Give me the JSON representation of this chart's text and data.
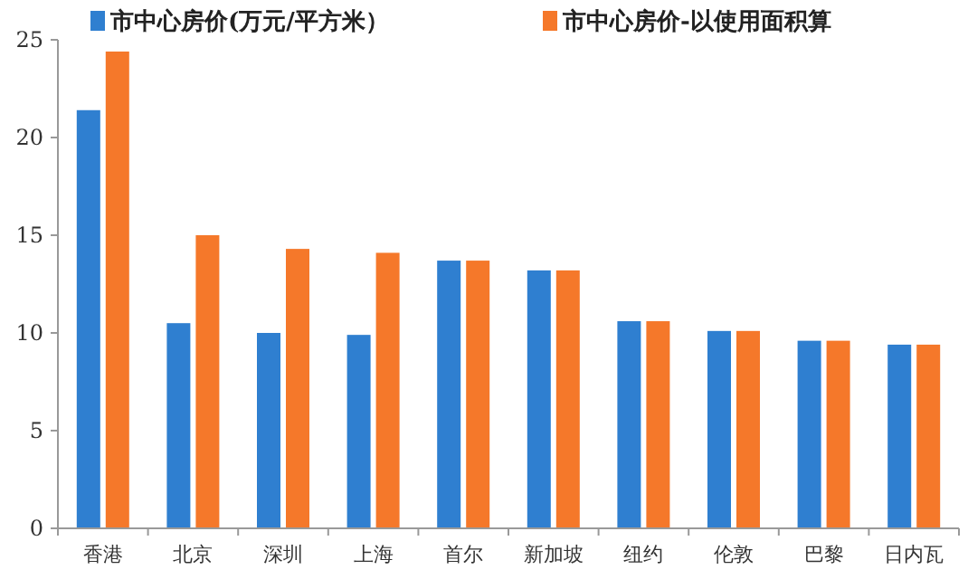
{
  "chart_data": {
    "type": "bar",
    "categories": [
      "香港",
      "北京",
      "深圳",
      "上海",
      "首尔",
      "新加坡",
      "纽约",
      "伦敦",
      "巴黎",
      "日内瓦"
    ],
    "series": [
      {
        "name": "市中心房价(万元/平方米）",
        "color": "#2f7fd0",
        "values": [
          21.4,
          10.5,
          10.0,
          9.9,
          13.7,
          13.2,
          10.6,
          10.1,
          9.6,
          9.4
        ]
      },
      {
        "name": "市中心房价-以使用面积算",
        "color": "#f5782a",
        "values": [
          24.4,
          15.0,
          14.3,
          14.1,
          13.7,
          13.2,
          10.6,
          10.1,
          9.6,
          9.4
        ]
      }
    ],
    "ylim": [
      0,
      25
    ],
    "yticks": [
      0,
      5,
      10,
      15,
      20,
      25
    ],
    "grid": false,
    "legend": "top"
  }
}
